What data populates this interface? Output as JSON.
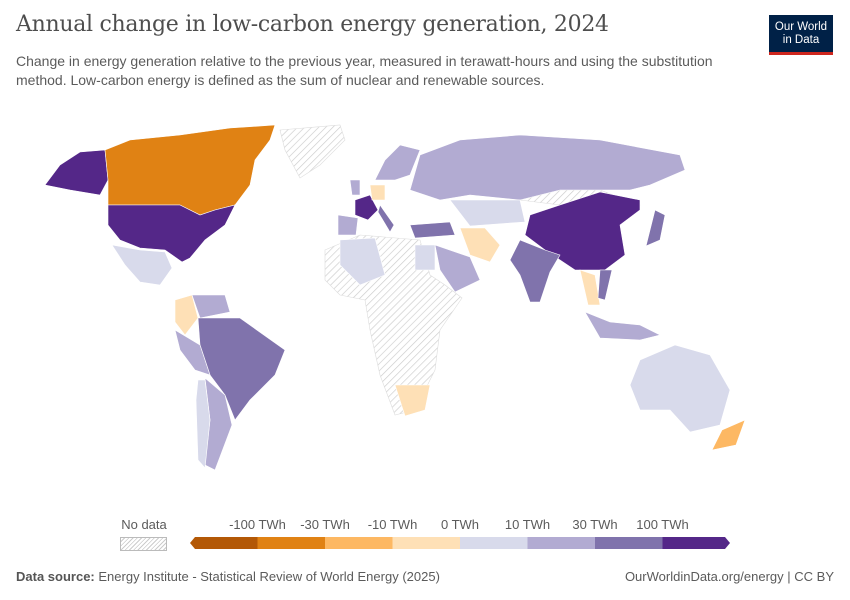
{
  "header": {
    "title": "Annual change in low-carbon energy generation, 2024",
    "subtitle": "Change in energy generation relative to the previous year, measured in terawatt-hours and using the substitution method. Low-carbon energy is defined as the sum of nuclear and renewable sources.",
    "logo": "Our World in Data"
  },
  "legend": {
    "no_data_label": "No data",
    "bins": [
      "-100 TWh",
      "-30 TWh",
      "-10 TWh",
      "0 TWh",
      "10 TWh",
      "30 TWh",
      "100 TWh"
    ],
    "colors": [
      "#b35806",
      "#e08214",
      "#fdb863",
      "#fee0b6",
      "#d8daeb",
      "#b2abd2",
      "#8073ac",
      "#542788"
    ]
  },
  "map": {
    "countries": {
      "United States": 7,
      "Alaska": 7,
      "Canada": 1,
      "Mexico": 4,
      "Colombia": 3,
      "Venezuela": 5,
      "Brazil": 6,
      "Peru": 5,
      "Argentina": 5,
      "Chile": 4,
      "France": 7,
      "Spain": 5,
      "United Kingdom": 5,
      "Germany": 3,
      "Nordics": 5,
      "Italy": 6,
      "Turkey": 6,
      "Russia": 5,
      "Kazakhstan": 4,
      "China": 7,
      "India": 6,
      "Iran": 3,
      "Saudi Arabia": 5,
      "Algeria": 4,
      "Egypt": 4,
      "South Africa": 3,
      "Australia": 4,
      "New Zealand": 2,
      "Japan": 6,
      "Indonesia": 5,
      "Thailand": 3,
      "Vietnam": 6
    }
  },
  "footer": {
    "source_label": "Data source:",
    "source": "Energy Institute - Statistical Review of World Energy (2025)",
    "link": "OurWorldinData.org/energy | CC BY"
  }
}
